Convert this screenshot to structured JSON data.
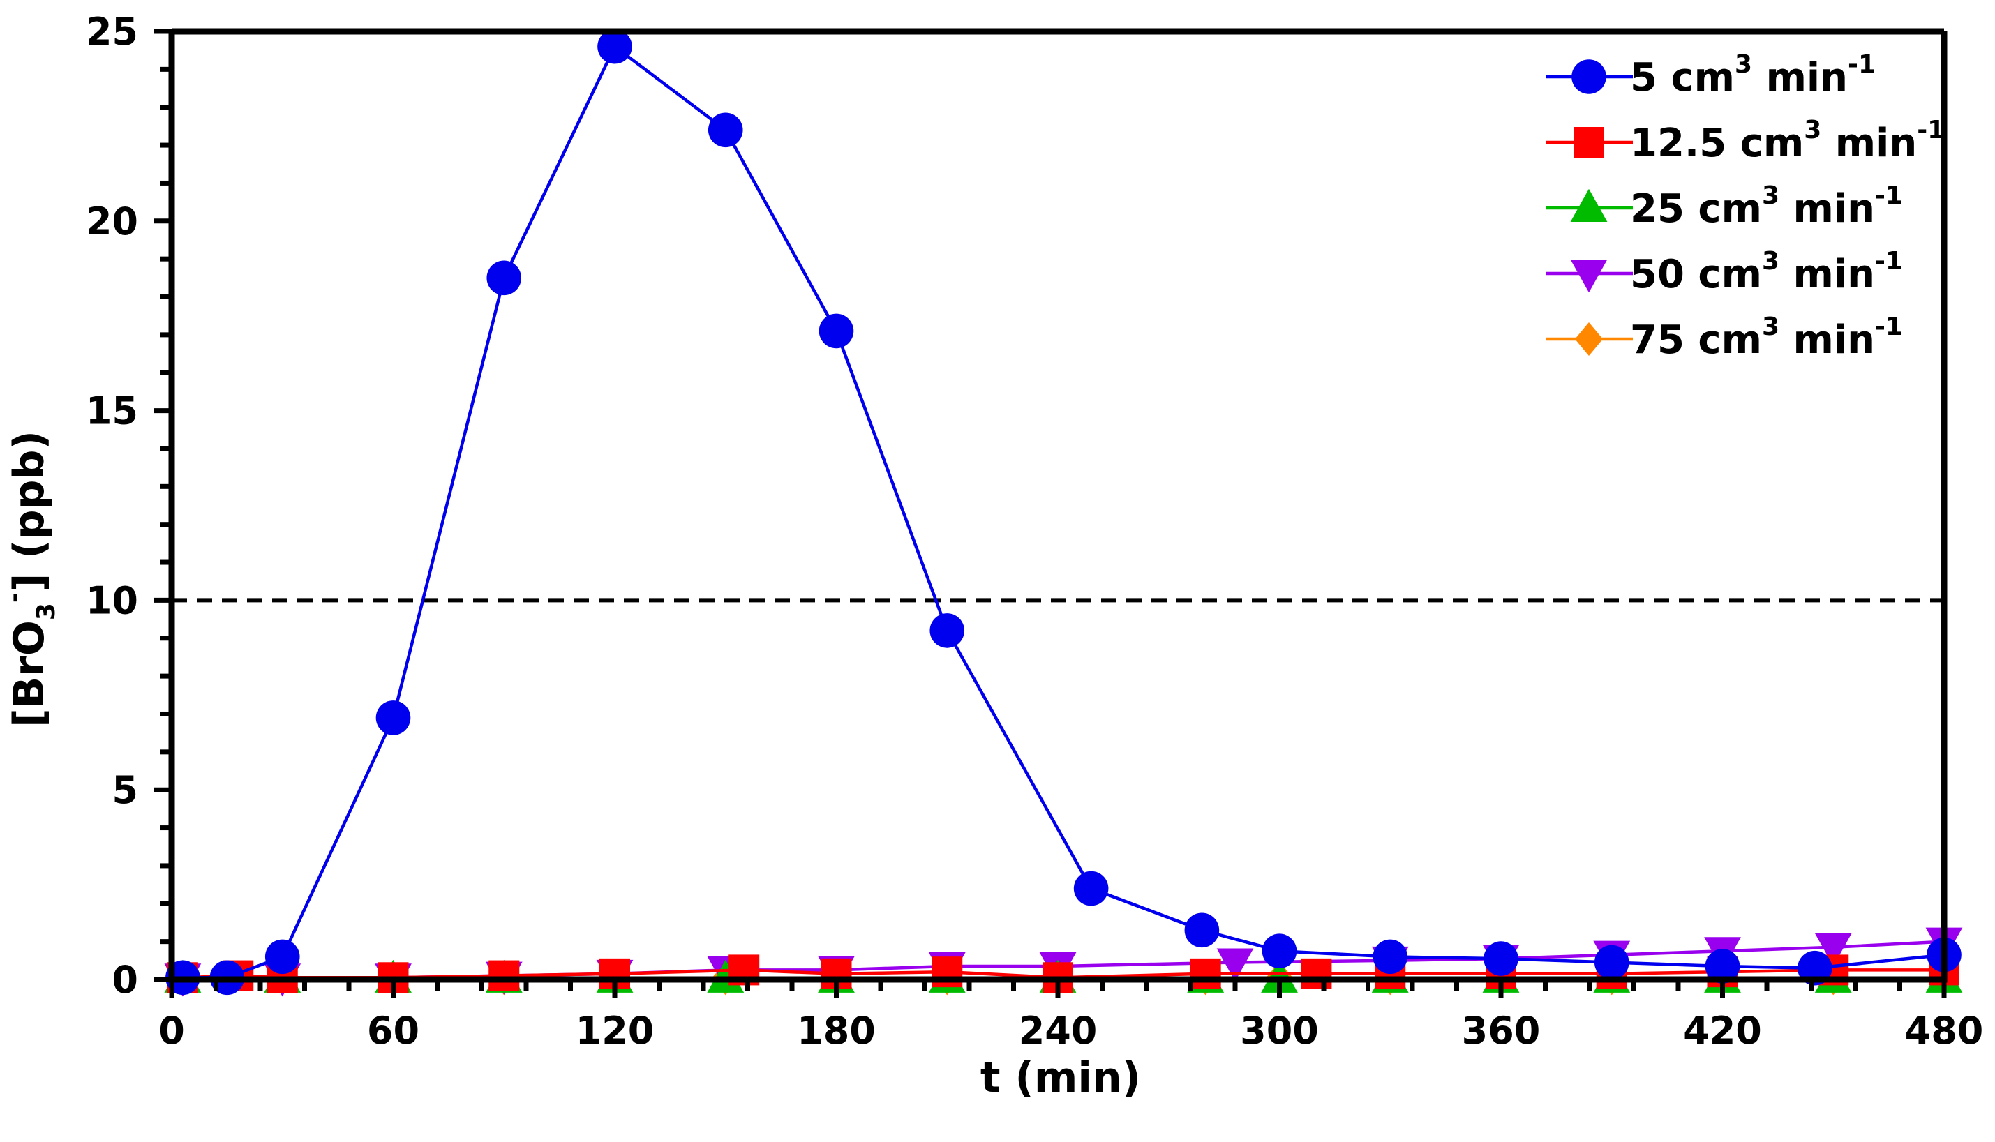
{
  "chart_data": {
    "type": "line",
    "xlabel": "t (min)",
    "ylabel": {
      "prefix": "[BrO",
      "sub": "3",
      "sup": "-",
      "suffix": "] (ppb)"
    },
    "xlim": [
      0,
      480
    ],
    "ylim": [
      0,
      25
    ],
    "xticks": [
      0,
      60,
      120,
      180,
      240,
      300,
      360,
      420,
      480
    ],
    "yticks": [
      0,
      5,
      10,
      15,
      20,
      25
    ],
    "reference_line": {
      "y": 10,
      "style": "dashed"
    },
    "grid": false,
    "legend_position": "top-right",
    "series": [
      {
        "name": "5 cm3 min-1",
        "label": {
          "base": "5 cm",
          "exp": "3",
          "unit": " min",
          "unit_exp": "-1"
        },
        "color": "#0000ee",
        "marker": "circle",
        "x": [
          3,
          15,
          30,
          60,
          90,
          120,
          150,
          180,
          210,
          249,
          279,
          300,
          330,
          360,
          390,
          420,
          445,
          480
        ],
        "y": [
          0.05,
          0.05,
          0.6,
          6.9,
          18.5,
          24.6,
          22.4,
          17.1,
          9.2,
          2.4,
          1.3,
          0.75,
          0.6,
          0.55,
          0.45,
          0.35,
          0.3,
          0.65
        ]
      },
      {
        "name": "12.5 cm3 min-1",
        "label": {
          "base": "12.5 cm",
          "exp": "3",
          "unit": " min",
          "unit_exp": "-1"
        },
        "color": "#ff0000",
        "marker": "square",
        "x": [
          3,
          18,
          30,
          60,
          90,
          120,
          155,
          180,
          210,
          240,
          280,
          310,
          330,
          360,
          390,
          420,
          450,
          480
        ],
        "y": [
          0.05,
          0.1,
          0.05,
          0.05,
          0.1,
          0.15,
          0.25,
          0.15,
          0.2,
          0.05,
          0.15,
          0.15,
          0.15,
          0.15,
          0.15,
          0.2,
          0.25,
          0.25
        ]
      },
      {
        "name": "25 cm3 min-1",
        "label": {
          "base": "25 cm",
          "exp": "3",
          "unit": " min",
          "unit_exp": "-1"
        },
        "color": "#00bb00",
        "marker": "triangle-up",
        "x": [
          3,
          30,
          60,
          90,
          120,
          150,
          180,
          210,
          240,
          280,
          300,
          330,
          360,
          390,
          420,
          450,
          480
        ],
        "y": [
          0.02,
          0.02,
          0.02,
          0.02,
          0.02,
          0.02,
          0.02,
          0.02,
          0.02,
          0.02,
          0.02,
          0.02,
          0.02,
          0.02,
          0.02,
          0.02,
          0.02
        ]
      },
      {
        "name": "50 cm3 min-1",
        "label": {
          "base": "50 cm",
          "exp": "3",
          "unit": " min",
          "unit_exp": "-1"
        },
        "color": "#9900ee",
        "marker": "triangle-down",
        "x": [
          3,
          30,
          60,
          90,
          120,
          150,
          180,
          210,
          240,
          288,
          330,
          360,
          390,
          420,
          450,
          480
        ],
        "y": [
          0.05,
          0.05,
          0.05,
          0.1,
          0.15,
          0.25,
          0.25,
          0.35,
          0.35,
          0.45,
          0.5,
          0.55,
          0.65,
          0.75,
          0.85,
          1.0
        ]
      },
      {
        "name": "75 cm3 min-1",
        "label": {
          "base": "75 cm",
          "exp": "3",
          "unit": " min",
          "unit_exp": "-1"
        },
        "color": "#ff8800",
        "marker": "diamond",
        "x": [
          3,
          30,
          60,
          90,
          120,
          150,
          180,
          210,
          240,
          280,
          300,
          330,
          360,
          390,
          420,
          450,
          480
        ],
        "y": [
          0.03,
          0.03,
          0.03,
          0.03,
          0.03,
          0.03,
          0.03,
          0.03,
          0.03,
          0.03,
          0.03,
          0.03,
          0.03,
          0.03,
          0.03,
          0.03,
          0.03
        ]
      }
    ]
  }
}
